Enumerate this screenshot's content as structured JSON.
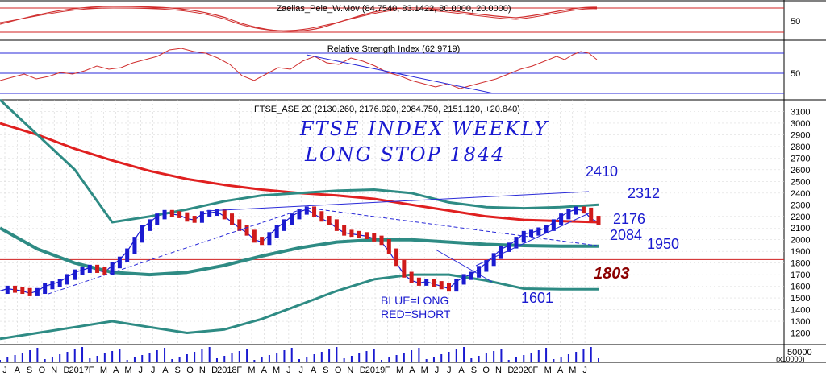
{
  "colors": {
    "background": "#ffffff",
    "price_up": "#1a1ad0",
    "price_down": "#d01a1a",
    "ma_red": "#e02020",
    "bands": "#2e8b84",
    "trend_blue": "#2a2ad8",
    "hline": "#d02020",
    "osc": "#d03030",
    "grid": "#aaaaaa"
  },
  "panels": {
    "oscillator": {
      "title": "Zaelias_Pele_W.Mov (84.7540, 83.1422, 80.0000, 20.0000)",
      "axis_label": "50"
    },
    "rsi": {
      "title": "Relative Strength Index (62.9719)",
      "axis_label": "50"
    },
    "price": {
      "title": "FTSE_ASE 20 (2130.260, 2176.920, 2084.750, 2151.120, +20.840)"
    },
    "volume": {
      "axis_label": "50000",
      "unit_label": "(x10000)"
    }
  },
  "annotations": {
    "title_line1": "FTSE  INDEX WEEKLY",
    "title_line2": "LONG STOP 1844",
    "levels": [
      "2410",
      "2312",
      "2176",
      "2084",
      "1950",
      "1601"
    ],
    "stop_value": "1803",
    "legend_long": "BLUE=LONG",
    "legend_short": "RED=SHORT"
  },
  "chart_data": {
    "type": "line",
    "title": "FTSE_ASE 20 (2130.260, 2176.920, 2084.750, 2151.120, +20.840)",
    "y_ticks": [
      1200,
      1300,
      1400,
      1500,
      1600,
      1700,
      1800,
      1900,
      2000,
      2100,
      2200,
      2300,
      2400,
      2500,
      2600,
      2700,
      2800,
      2900,
      3000,
      3100
    ],
    "ylim": [
      1100,
      3200
    ],
    "x_months": [
      "J",
      "A",
      "S",
      "O",
      "N",
      "D",
      "2017",
      "F",
      "M",
      "A",
      "M",
      "J",
      "J",
      "A",
      "S",
      "O",
      "N",
      "D",
      "2018",
      "F",
      "M",
      "A",
      "M",
      "J",
      "J",
      "A",
      "S",
      "O",
      "N",
      "D",
      "2019",
      "F",
      "M",
      "A",
      "M",
      "J",
      "J",
      "A",
      "S",
      "O",
      "N",
      "D",
      "2020",
      "F",
      "M",
      "A",
      "M",
      "J"
    ],
    "horizontal_line": 1830,
    "series": [
      {
        "x": [
          0,
          2,
          4,
          6,
          8,
          10,
          12,
          14,
          16,
          18,
          20,
          22,
          24,
          26,
          28,
          30,
          32,
          34,
          36,
          38,
          40,
          42,
          44,
          46,
          48,
          50,
          52,
          54,
          56,
          58,
          60,
          62,
          64,
          66,
          68,
          70,
          72,
          74,
          76,
          78,
          80,
          82,
          84,
          86,
          88,
          90,
          92,
          94,
          96,
          98,
          100,
          102,
          104,
          106,
          108,
          110,
          112,
          114,
          116,
          118,
          120,
          122,
          124,
          126,
          128,
          130,
          132,
          134,
          136,
          138,
          140,
          142,
          144,
          146,
          148,
          150,
          152,
          154,
          156,
          158,
          160
        ],
        "values": [
          1560,
          1580,
          1570,
          1560,
          1540,
          1560,
          1600,
          1620,
          1640,
          1680,
          1720,
          1740,
          1760,
          1740,
          1720,
          1780,
          1830,
          1900,
          2000,
          2100,
          2150,
          2200,
          2230,
          2220,
          2210,
          2180,
          2170,
          2220,
          2230,
          2240,
          2200,
          2150,
          2100,
          2060,
          2000,
          1980,
          2040,
          2100,
          2150,
          2200,
          2240,
          2260,
          2220,
          2180,
          2150,
          2100,
          2060,
          2050,
          2040,
          2030,
          2010,
          1980,
          1900,
          1800,
          1700,
          1650,
          1630,
          1640,
          1620,
          1600,
          1580,
          1640,
          1680,
          1700,
          1750,
          1800,
          1860,
          1920,
          1950,
          2000,
          2050,
          2060,
          2080,
          2100,
          2150,
          2200,
          2240,
          2260,
          2250,
          2180,
          2151
        ]
      },
      {
        "x": [
          0,
          10,
          20,
          30,
          40,
          50,
          60,
          70,
          80,
          90,
          100,
          110,
          120,
          130,
          140,
          150,
          160
        ],
        "values": [
          3000,
          2900,
          2780,
          2680,
          2590,
          2520,
          2470,
          2430,
          2400,
          2380,
          2350,
          2300,
          2250,
          2200,
          2170,
          2160,
          2150
        ]
      },
      {
        "x": [
          0,
          10,
          20,
          30,
          40,
          50,
          60,
          70,
          80,
          90,
          100,
          110,
          120,
          130,
          140,
          150,
          160
        ],
        "values": [
          3200,
          2900,
          2600,
          2150,
          2200,
          2260,
          2330,
          2380,
          2400,
          2420,
          2430,
          2400,
          2320,
          2280,
          2270,
          2280,
          2300
        ]
      },
      {
        "x": [
          0,
          10,
          20,
          30,
          40,
          50,
          60,
          70,
          80,
          90,
          100,
          110,
          120,
          130,
          140,
          150,
          160
        ],
        "values": [
          2100,
          1920,
          1800,
          1720,
          1700,
          1720,
          1780,
          1860,
          1930,
          1980,
          2000,
          2000,
          1980,
          1960,
          1950,
          1945,
          1945
        ]
      },
      {
        "x": [
          0,
          10,
          20,
          30,
          40,
          50,
          60,
          70,
          80,
          90,
          100,
          110,
          120,
          130,
          140,
          150,
          160
        ],
        "values": [
          1150,
          1200,
          1250,
          1300,
          1250,
          1200,
          1230,
          1320,
          1440,
          1560,
          1660,
          1700,
          1700,
          1650,
          1580,
          1575,
          1575
        ]
      }
    ]
  }
}
